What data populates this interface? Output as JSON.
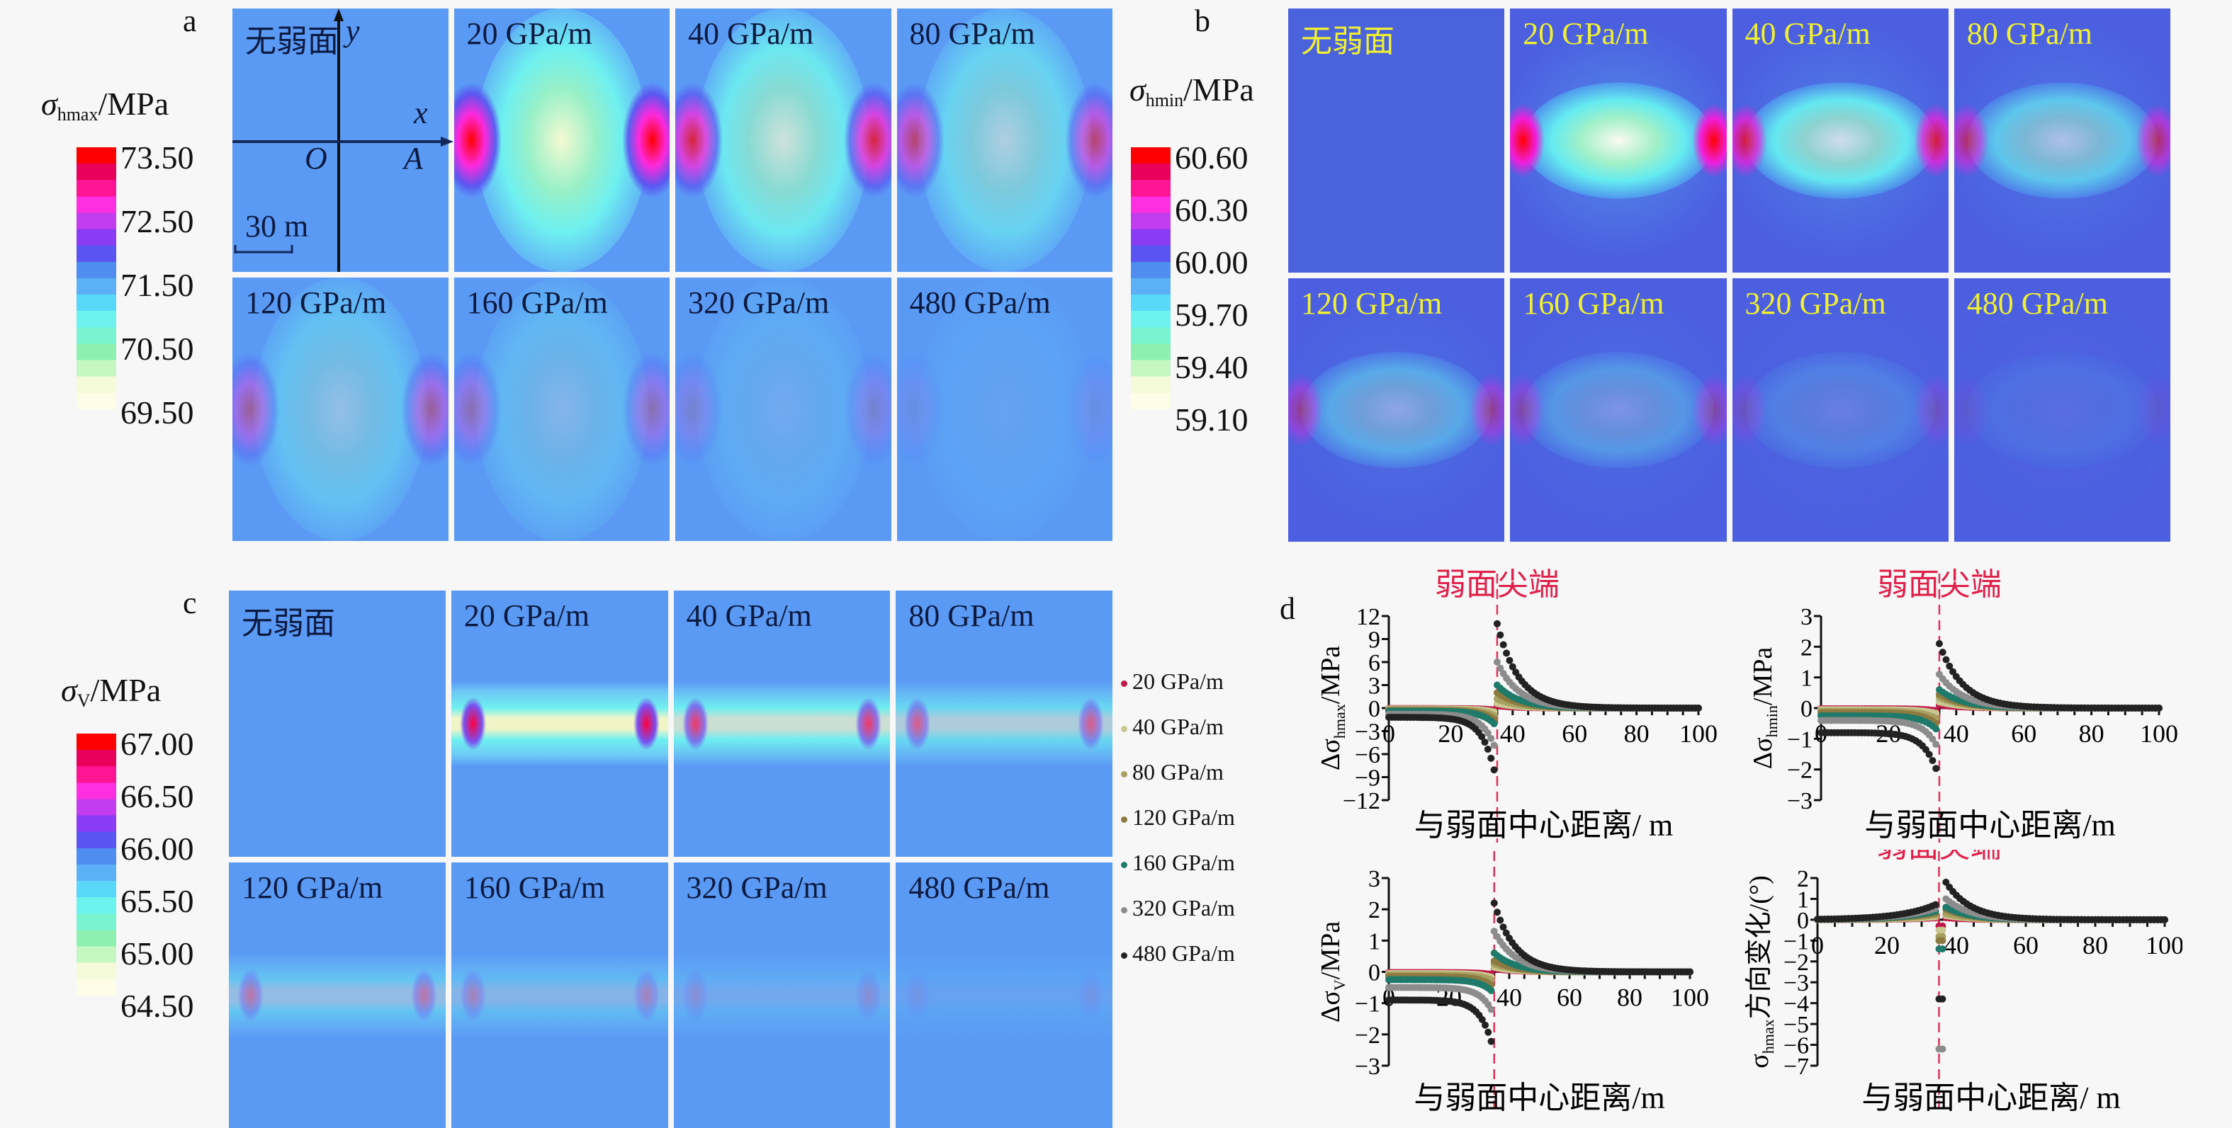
{
  "figure": {
    "panel_letters": {
      "a": "a",
      "b": "b",
      "c": "c",
      "d": "d"
    },
    "map_labels": [
      "无弱面",
      "20 GPa/m",
      "40 GPa/m",
      "80 GPa/m",
      "120 GPa/m",
      "160 GPa/m",
      "320 GPa/m",
      "480 GPa/m"
    ],
    "axis_annotations": {
      "y": "y",
      "x": "x",
      "origin": "O",
      "point": "A",
      "scale_bar": "30 m"
    }
  },
  "colorbars": {
    "a": {
      "symbol": "σ",
      "sub": "hmax",
      "unit": "/MPa",
      "ticks": [
        "73.50",
        "72.50",
        "71.50",
        "70.50",
        "69.50"
      ]
    },
    "b": {
      "symbol": "σ",
      "sub": "hmin",
      "unit": "/MPa",
      "ticks": [
        "60.60",
        "60.30",
        "60.00",
        "59.70",
        "59.40",
        "59.10"
      ]
    },
    "c": {
      "symbol": "σ",
      "sub": "V",
      "unit": "/MPa",
      "ticks": [
        "67.00",
        "66.50",
        "66.00",
        "65.50",
        "65.00",
        "64.50"
      ]
    },
    "colors": [
      "#ff0000",
      "#e8005a",
      "#ff1493",
      "#ff2ee0",
      "#c23cf0",
      "#8a3cf5",
      "#5a55f2",
      "#4f8ef0",
      "#5cb0f5",
      "#5ad8fa",
      "#6ef2ef",
      "#78f5d0",
      "#8ef0b0",
      "#c5f7c0",
      "#f5fbd8",
      "#fdfde8"
    ]
  },
  "legend": {
    "items": [
      {
        "label": "20 GPa/m",
        "color": "#c0184a"
      },
      {
        "label": "40 GPa/m",
        "color": "#c8c890"
      },
      {
        "label": "80 GPa/m",
        "color": "#a8a060"
      },
      {
        "label": "120 GPa/m",
        "color": "#8c7a40"
      },
      {
        "label": "160 GPa/m",
        "color": "#1f7a6a"
      },
      {
        "label": "320 GPa/m",
        "color": "#8c8c8c"
      },
      {
        "label": "480 GPa/m",
        "color": "#222222"
      }
    ]
  },
  "chart_data": [
    {
      "type": "scatter",
      "id": "d1",
      "title": "弱面尖端",
      "xlabel": "与弱面中心距离/ m",
      "ylabel": "Δσhmax/MPa",
      "ylabel_symbol": "Δσ",
      "ylabel_sub": "hmax",
      "ylabel_unit": "/MPa",
      "xlim": [
        0,
        100
      ],
      "ylim": [
        -12,
        12
      ],
      "xticks": [
        0,
        20,
        40,
        60,
        80,
        100
      ],
      "yticks": [
        12,
        9,
        6,
        3,
        0,
        -3,
        -6,
        -9,
        -12
      ],
      "tip_x": 35,
      "series": [
        {
          "name": "20 GPa/m",
          "inner": -0.05,
          "innerTip": -0.3,
          "outerTip": 0.3
        },
        {
          "name": "40 GPa/m",
          "inner": -0.1,
          "innerTip": -0.6,
          "outerTip": 0.6
        },
        {
          "name": "80 GPa/m",
          "inner": -0.2,
          "innerTip": -1.2,
          "outerTip": 1.2
        },
        {
          "name": "120 GPa/m",
          "inner": -0.3,
          "innerTip": -1.8,
          "outerTip": 2.0
        },
        {
          "name": "160 GPa/m",
          "inner": -0.4,
          "innerTip": -2.5,
          "outerTip": 3.0
        },
        {
          "name": "320 GPa/m",
          "inner": -0.8,
          "innerTip": -6.0,
          "outerTip": 6.0
        },
        {
          "name": "480 GPa/m",
          "inner": -1.2,
          "innerTip": -10.0,
          "outerTip": 11.0
        }
      ]
    },
    {
      "type": "scatter",
      "id": "d2",
      "title": "弱面尖端",
      "xlabel": "与弱面中心距离/m",
      "ylabel": "Δσhmin/MPa",
      "ylabel_symbol": "Δσ",
      "ylabel_sub": "hmin",
      "ylabel_unit": "/MPa",
      "xlim": [
        0,
        100
      ],
      "ylim": [
        -3,
        3
      ],
      "xticks": [
        0,
        20,
        40,
        60,
        80,
        100
      ],
      "yticks": [
        3,
        2,
        1,
        0,
        -1,
        -2,
        -3
      ],
      "tip_x": 35,
      "series": [
        {
          "name": "20 GPa/m",
          "inner": -0.02,
          "innerTip": -0.1,
          "outerTip": 0.1
        },
        {
          "name": "40 GPa/m",
          "inner": -0.05,
          "innerTip": -0.2,
          "outerTip": 0.2
        },
        {
          "name": "80 GPa/m",
          "inner": -0.1,
          "innerTip": -0.4,
          "outerTip": 0.35
        },
        {
          "name": "120 GPa/m",
          "inner": -0.15,
          "innerTip": -0.6,
          "outerTip": 0.45
        },
        {
          "name": "160 GPa/m",
          "inner": -0.25,
          "innerTip": -0.8,
          "outerTip": 0.6
        },
        {
          "name": "320 GPa/m",
          "inner": -0.4,
          "innerTip": -1.4,
          "outerTip": 1.1
        },
        {
          "name": "480 GPa/m",
          "inner": -0.8,
          "innerTip": -2.3,
          "outerTip": 2.1
        }
      ]
    },
    {
      "type": "scatter",
      "id": "d3",
      "title": "",
      "xlabel": "与弱面中心距离/m",
      "ylabel": "ΔσV/MPa",
      "ylabel_symbol": "Δσ",
      "ylabel_sub": "V",
      "ylabel_unit": "/MPa",
      "xlim": [
        0,
        100
      ],
      "ylim": [
        -3,
        3
      ],
      "xticks": [
        0,
        20,
        40,
        60,
        80,
        100
      ],
      "yticks": [
        3,
        2,
        1,
        0,
        -1,
        -2,
        -3
      ],
      "tip_x": 35,
      "series": [
        {
          "name": "20 GPa/m",
          "inner": -0.02,
          "innerTip": -0.1,
          "outerTip": 0.1
        },
        {
          "name": "40 GPa/m",
          "inner": -0.05,
          "innerTip": -0.2,
          "outerTip": 0.15
        },
        {
          "name": "80 GPa/m",
          "inner": -0.1,
          "innerTip": -0.3,
          "outerTip": 0.25
        },
        {
          "name": "120 GPa/m",
          "inner": -0.15,
          "innerTip": -0.5,
          "outerTip": 0.35
        },
        {
          "name": "160 GPa/m",
          "inner": -0.25,
          "innerTip": -0.7,
          "outerTip": 0.6
        },
        {
          "name": "320 GPa/m",
          "inner": -0.5,
          "innerTip": -1.4,
          "outerTip": 1.3
        },
        {
          "name": "480 GPa/m",
          "inner": -0.9,
          "innerTip": -2.6,
          "outerTip": 2.2
        }
      ]
    },
    {
      "type": "scatter",
      "id": "d4",
      "title": "弱面尖端",
      "xlabel": "与弱面中心距离/ m",
      "ylabel": "σhmax方向变化/(°)",
      "ylabel_symbol": "σ",
      "ylabel_sub": "hmax",
      "ylabel_unit": "方向变化/(°)",
      "xlim": [
        0,
        100
      ],
      "ylim": [
        -7,
        2
      ],
      "xticks": [
        0,
        20,
        40,
        60,
        80,
        100
      ],
      "yticks": [
        2,
        1,
        0,
        -1,
        -2,
        -3,
        -4,
        -5,
        -6,
        -7
      ],
      "tip_x": 35,
      "series": [
        {
          "name": "20 GPa/m",
          "peakIn": 0.1,
          "outerTip": 0.1,
          "dip": -0.3
        },
        {
          "name": "40 GPa/m",
          "peakIn": 0.15,
          "outerTip": 0.2,
          "dip": -0.5
        },
        {
          "name": "80 GPa/m",
          "peakIn": 0.25,
          "outerTip": 0.3,
          "dip": -0.8
        },
        {
          "name": "120 GPa/m",
          "peakIn": 0.35,
          "outerTip": 0.5,
          "dip": -1.0
        },
        {
          "name": "160 GPa/m",
          "peakIn": 0.45,
          "outerTip": 0.6,
          "dip": -1.4
        },
        {
          "name": "320 GPa/m",
          "peakIn": 0.6,
          "outerTip": 1.0,
          "dip": -6.2
        },
        {
          "name": "480 GPa/m",
          "peakIn": 0.8,
          "outerTip": 1.8,
          "dip": -3.8
        }
      ]
    }
  ]
}
